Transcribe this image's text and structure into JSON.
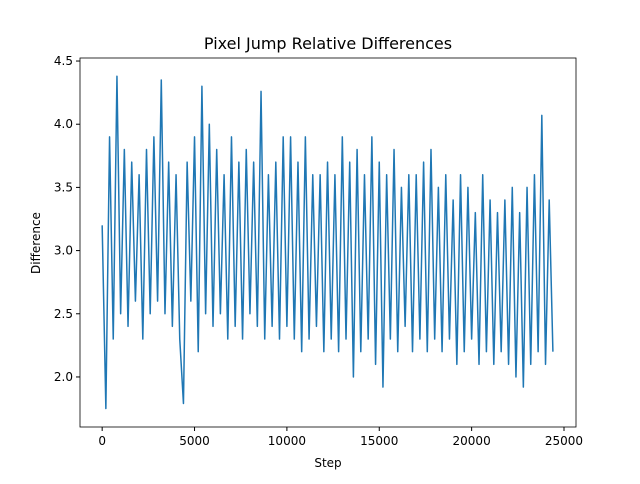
{
  "chart_data": {
    "type": "line",
    "title": "Pixel Jump Relative Differences",
    "x_label": "Step",
    "y_label": "Difference",
    "x": [
      0,
      200,
      400,
      600,
      800,
      1000,
      1200,
      1400,
      1600,
      1800,
      2000,
      2200,
      2400,
      2600,
      2800,
      3000,
      3200,
      3400,
      3600,
      3800,
      4000,
      4200,
      4400,
      4600,
      4800,
      5000,
      5200,
      5400,
      5600,
      5800,
      6000,
      6200,
      6400,
      6600,
      6800,
      7000,
      7200,
      7400,
      7600,
      7800,
      8000,
      8200,
      8400,
      8600,
      8800,
      9000,
      9200,
      9400,
      9600,
      9800,
      10000,
      10200,
      10400,
      10600,
      10800,
      11000,
      11200,
      11400,
      11600,
      11800,
      12000,
      12200,
      12400,
      12600,
      12800,
      13000,
      13200,
      13400,
      13600,
      13800,
      14000,
      14200,
      14400,
      14600,
      14800,
      15000,
      15200,
      15400,
      15600,
      15800,
      16000,
      16200,
      16400,
      16600,
      16800,
      17000,
      17200,
      17400,
      17600,
      17800,
      18000,
      18200,
      18400,
      18600,
      18800,
      19000,
      19200,
      19400,
      19600,
      19800,
      20000,
      20200,
      20400,
      20600,
      20800,
      21000,
      21200,
      21400,
      21600,
      21800,
      22000,
      22200,
      22400,
      22600,
      22800,
      23000,
      23200,
      23400,
      23600,
      23800,
      24000,
      24200,
      24400
    ],
    "series": [
      {
        "name": "Difference",
        "color": "#1f77b4",
        "values": [
          3.2,
          1.75,
          3.9,
          2.3,
          4.38,
          2.5,
          3.8,
          2.4,
          3.7,
          2.6,
          3.6,
          2.3,
          3.8,
          2.5,
          3.9,
          2.6,
          4.35,
          2.5,
          3.7,
          2.4,
          3.6,
          2.3,
          1.79,
          3.7,
          2.6,
          3.9,
          2.2,
          4.3,
          2.5,
          4.0,
          2.4,
          3.8,
          2.5,
          3.6,
          2.3,
          3.9,
          2.4,
          3.7,
          2.3,
          3.8,
          2.5,
          3.7,
          2.4,
          4.26,
          2.3,
          3.6,
          2.4,
          3.7,
          2.3,
          3.9,
          2.4,
          3.9,
          2.3,
          3.7,
          2.2,
          3.9,
          2.3,
          3.6,
          2.4,
          3.6,
          2.2,
          3.7,
          2.3,
          3.6,
          2.2,
          3.9,
          2.3,
          3.7,
          2.0,
          3.8,
          2.2,
          3.6,
          2.3,
          3.9,
          2.1,
          3.7,
          1.92,
          3.6,
          2.3,
          3.8,
          2.2,
          3.5,
          2.4,
          3.6,
          2.2,
          3.6,
          2.3,
          3.7,
          2.2,
          3.8,
          2.3,
          3.5,
          2.2,
          3.6,
          2.3,
          3.4,
          2.1,
          3.6,
          2.2,
          3.5,
          2.3,
          3.3,
          2.1,
          3.6,
          2.2,
          3.4,
          2.1,
          3.3,
          2.2,
          3.4,
          2.1,
          3.5,
          2.0,
          3.3,
          1.92,
          3.5,
          2.1,
          3.6,
          2.2,
          4.07,
          2.1,
          3.4,
          2.2
        ]
      }
    ],
    "xlim": [
      -1200,
      25650
    ],
    "ylim": [
      1.604,
      4.524
    ],
    "xticks": [
      0,
      5000,
      10000,
      15000,
      20000,
      25000
    ],
    "yticks": [
      {
        "value": 2,
        "label": "2.0"
      },
      2.5,
      {
        "value": 3,
        "label": "3.0"
      },
      3.5,
      {
        "value": 4,
        "label": "4.0"
      },
      4.5
    ]
  }
}
